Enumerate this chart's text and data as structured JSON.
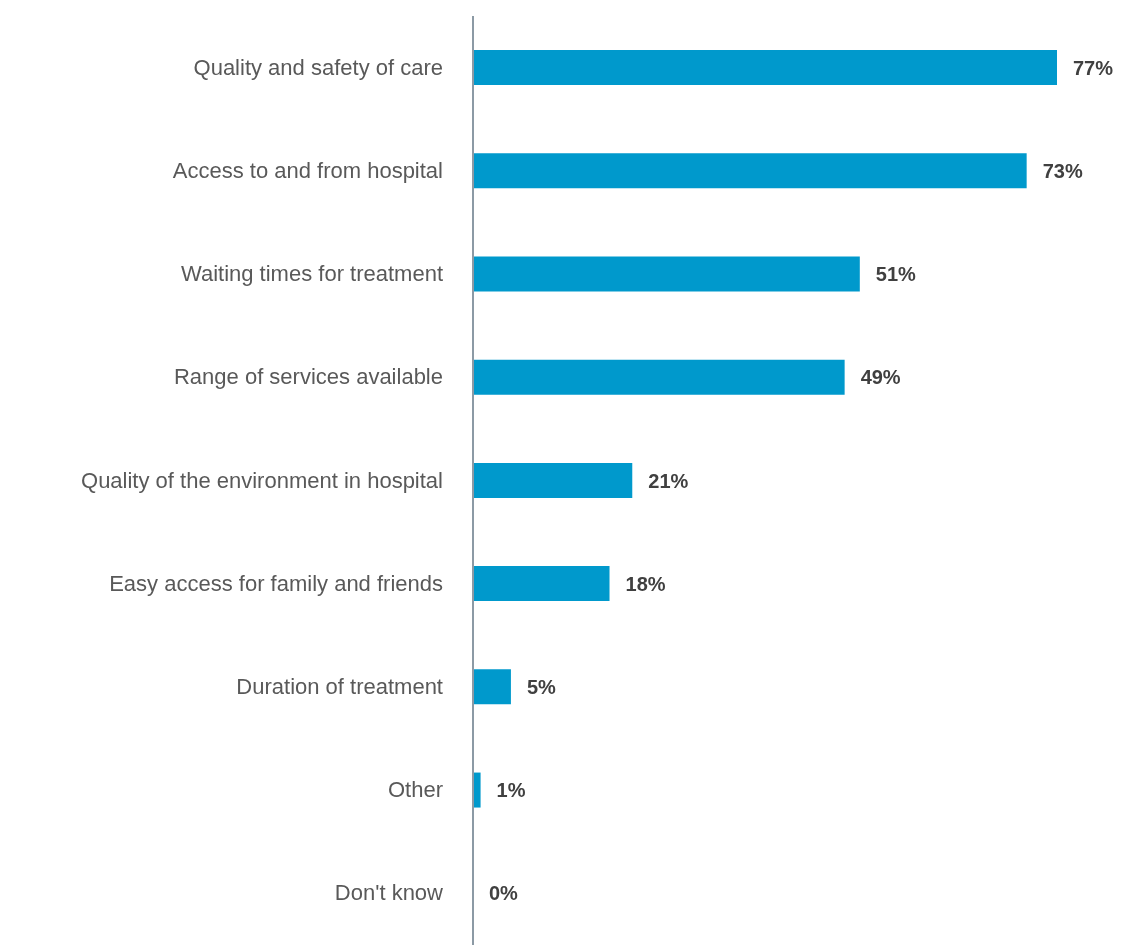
{
  "chart_data": {
    "type": "bar",
    "orientation": "horizontal",
    "categories": [
      "Quality and safety of care",
      "Access to and from hospital",
      "Waiting times for treatment",
      "Range of services available",
      "Quality of the environment in hospital",
      "Easy access for family and friends",
      "Duration of treatment",
      "Other",
      "Don't know"
    ],
    "values": [
      77,
      73,
      51,
      49,
      21,
      18,
      5,
      1,
      0
    ],
    "value_labels": [
      "77%",
      "73%",
      "51%",
      "49%",
      "21%",
      "18%",
      "5%",
      "1%",
      "0%"
    ],
    "color": "#0099cc",
    "grid": false,
    "legend": false
  }
}
